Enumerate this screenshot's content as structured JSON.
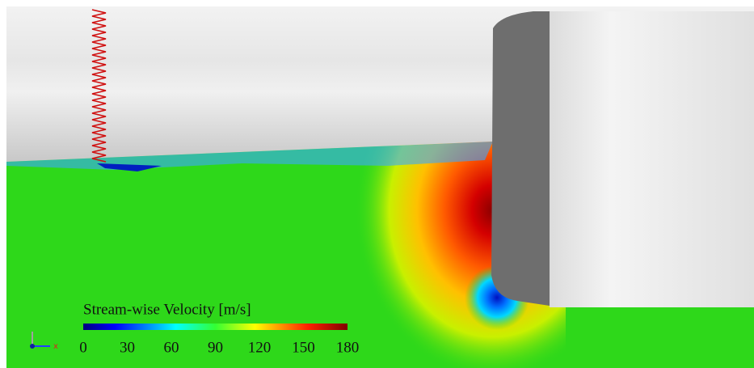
{
  "colorbar": {
    "title": "Stream-wise Velocity [m/s]",
    "lim": [
      0,
      180
    ],
    "ticks": [
      0,
      30,
      60,
      90,
      120,
      150,
      180
    ]
  },
  "axes_triad": {
    "x_label": "x"
  }
}
